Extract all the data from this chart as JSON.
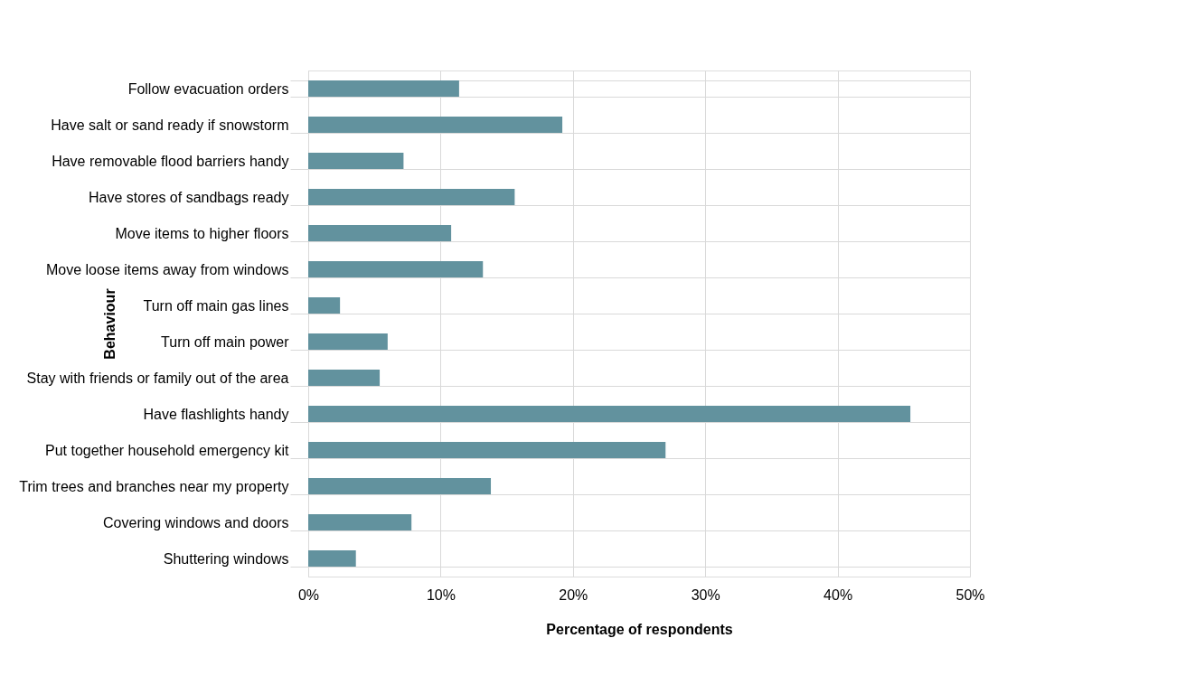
{
  "chart_data": {
    "type": "bar",
    "orientation": "horizontal",
    "xlabel": "Percentage of respondents",
    "ylabel": "Behaviour",
    "categories": [
      "Follow evacuation orders",
      "Have salt or sand ready if snowstorm",
      "Have removable flood barriers handy",
      "Have stores of sandbags ready",
      "Move items to higher floors",
      "Move loose items away from windows",
      "Turn off main gas lines",
      "Turn off main power",
      "Stay with friends or family out of the area",
      "Have flashlights handy",
      "Put together household emergency kit",
      "Trim trees and branches near my property",
      "Covering windows and doors",
      "Shuttering windows"
    ],
    "values": [
      11.4,
      19.2,
      7.2,
      15.6,
      10.8,
      13.2,
      2.4,
      6.0,
      5.4,
      45.5,
      27.0,
      13.8,
      7.8,
      3.6
    ],
    "color": "#62929e",
    "xlim": [
      0,
      50
    ],
    "xticks": [
      {
        "value": 0,
        "label": "0%"
      },
      {
        "value": 10,
        "label": "10%"
      },
      {
        "value": 20,
        "label": "20%"
      },
      {
        "value": 30,
        "label": "30%"
      },
      {
        "value": 40,
        "label": "40%"
      },
      {
        "value": 50,
        "label": "50%"
      }
    ],
    "grid": true
  }
}
